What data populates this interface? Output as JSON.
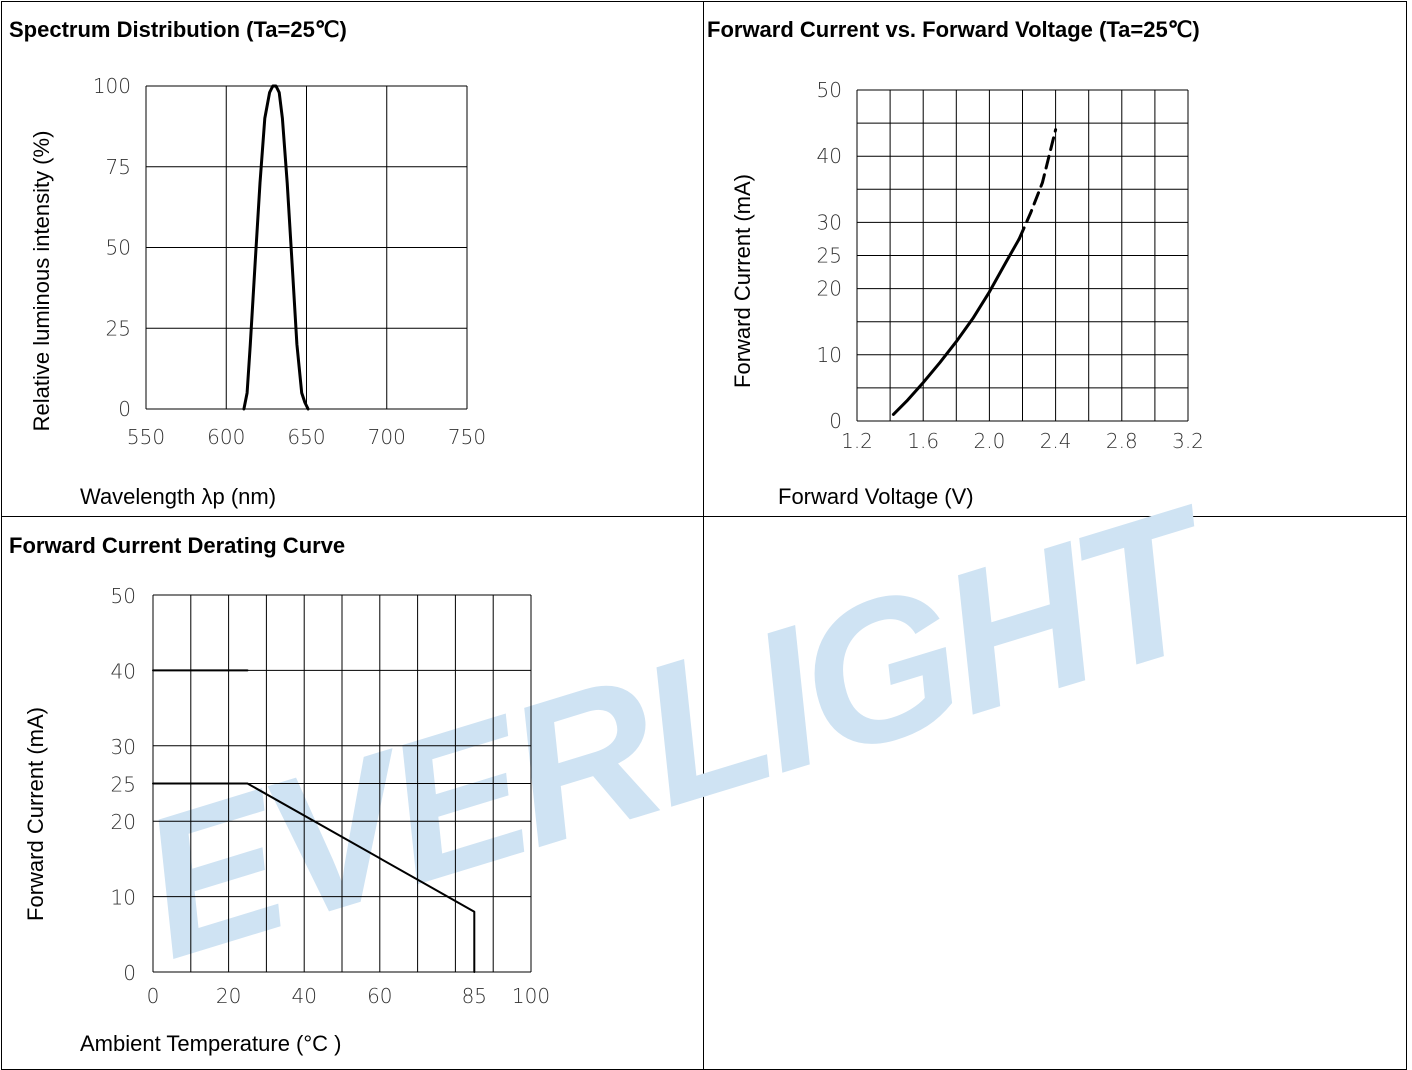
{
  "watermark": {
    "text": "EVERLIGHT",
    "color": "#cfe3f3"
  },
  "chart_data": [
    {
      "id": "spectrum",
      "type": "line",
      "title": "Spectrum Distribution (Ta=25℃)",
      "xlabel": "Wavelength λp (nm)",
      "ylabel": "Relative luminous intensity (%)",
      "xlim": [
        550,
        750
      ],
      "ylim": [
        0,
        100
      ],
      "x_ticks": [
        550,
        600,
        650,
        700,
        750
      ],
      "y_ticks": [
        0,
        25,
        50,
        75,
        100
      ],
      "x_tick_labels": [
        "550",
        "600",
        "650",
        "700",
        "750"
      ],
      "y_tick_labels": [
        "0",
        "25",
        "50",
        "75",
        "100"
      ],
      "grid": true,
      "series": [
        {
          "style": "solid",
          "x": [
            611,
            613,
            615,
            618,
            621,
            624,
            627,
            629,
            631,
            633,
            635,
            638,
            641,
            644,
            647,
            649,
            651
          ],
          "y": [
            0,
            5,
            20,
            45,
            70,
            90,
            98,
            100,
            100,
            98,
            90,
            70,
            45,
            20,
            5,
            2,
            0
          ]
        }
      ]
    },
    {
      "id": "iv",
      "type": "line",
      "title": "Forward Current vs. Forward Voltage (Ta=25℃)",
      "xlabel": "Forward Voltage (V)",
      "ylabel": "Forward Current (mA)",
      "xlim": [
        1.2,
        3.2
      ],
      "ylim": [
        0,
        50
      ],
      "x_ticks": [
        1.2,
        1.6,
        2.0,
        2.4,
        2.8,
        3.2
      ],
      "y_ticks": [
        0,
        10,
        20,
        25,
        30,
        40,
        50
      ],
      "x_tick_labels": [
        "1.2",
        "1.6",
        "2.0",
        "2.4",
        "2.8",
        "3.2"
      ],
      "y_tick_labels": [
        "0",
        "10",
        "20",
        "25",
        "30",
        "40",
        "50"
      ],
      "grid_x": [
        1.2,
        1.4,
        1.6,
        1.8,
        2.0,
        2.2,
        2.4,
        2.6,
        2.8,
        3.0,
        3.2
      ],
      "grid_y": [
        0,
        5,
        10,
        15,
        20,
        25,
        30,
        35,
        40,
        45,
        50
      ],
      "grid": true,
      "series": [
        {
          "style": "solid",
          "x": [
            1.42,
            1.5,
            1.6,
            1.7,
            1.8,
            1.9,
            2.0,
            2.1,
            2.18
          ],
          "y": [
            1,
            3,
            5.8,
            8.8,
            12,
            15.5,
            19.5,
            24,
            27.5
          ]
        },
        {
          "style": "dashed",
          "x": [
            2.18,
            2.25,
            2.32,
            2.4
          ],
          "y": [
            27.5,
            31.5,
            36,
            44
          ]
        }
      ]
    },
    {
      "id": "derating",
      "type": "line",
      "title": "Forward Current Derating Curve",
      "xlabel": "Ambient Temperature (°C )",
      "ylabel": "Forward Current (mA)",
      "xlim": [
        0,
        100
      ],
      "ylim": [
        0,
        50
      ],
      "x_ticks": [
        0,
        20,
        40,
        60,
        85,
        100
      ],
      "y_ticks": [
        0,
        10,
        20,
        25,
        30,
        40,
        50
      ],
      "x_tick_labels": [
        "0",
        "20",
        "40",
        "60",
        "85",
        "100"
      ],
      "y_tick_labels": [
        "0",
        "10",
        "20",
        "25",
        "30",
        "40",
        "50"
      ],
      "grid_x": [
        0,
        10,
        20,
        30,
        40,
        50,
        60,
        70,
        80,
        90,
        100
      ],
      "grid_y": [
        0,
        10,
        20,
        25,
        30,
        40,
        50
      ],
      "grid": true,
      "series": [
        {
          "style": "solid",
          "x": [
            0,
            25
          ],
          "y": [
            40,
            40
          ]
        },
        {
          "style": "solid",
          "x": [
            0,
            25,
            85,
            85
          ],
          "y": [
            25,
            25,
            8,
            0
          ]
        }
      ]
    }
  ]
}
